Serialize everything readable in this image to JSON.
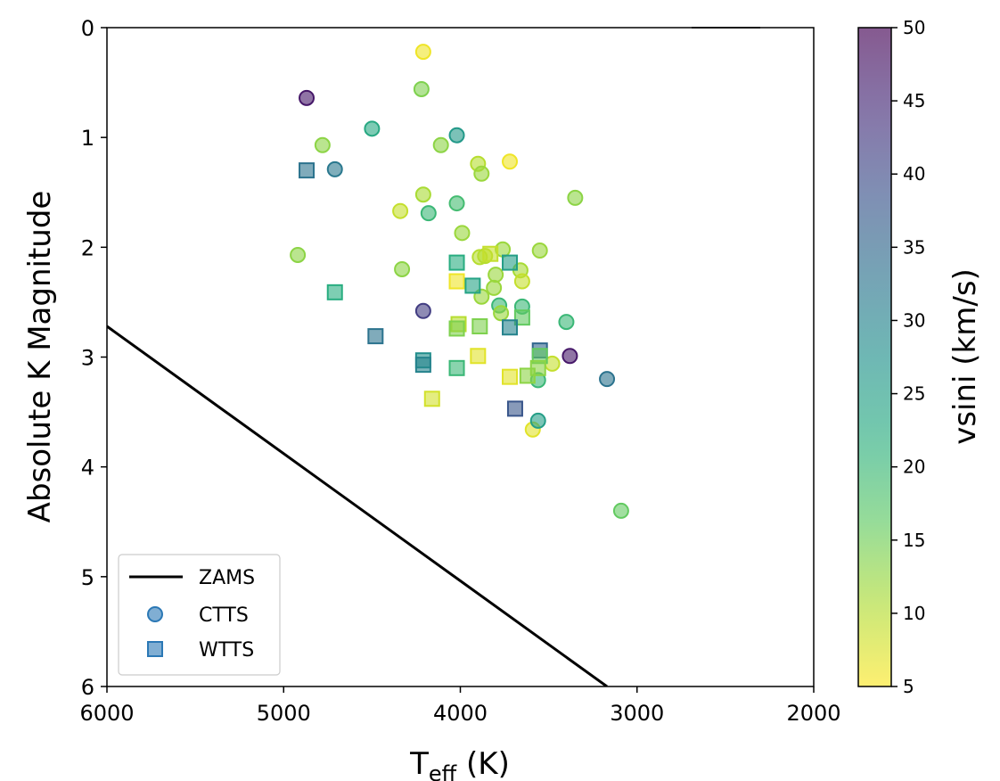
{
  "chart_data": {
    "type": "scatter",
    "xlabel_main": "T",
    "xlabel_sub": "eff",
    "xlabel_unit": " (K)",
    "ylabel": "Absolute K Magnitude",
    "xlim": [
      6000,
      2000
    ],
    "ylim": [
      6,
      0
    ],
    "x_ticks": [
      "6000",
      "5000",
      "4000",
      "3000",
      "2000"
    ],
    "x_tick_values": [
      6000,
      5000,
      4000,
      3000,
      2000
    ],
    "y_ticks": [
      "0",
      "1",
      "2",
      "3",
      "4",
      "5",
      "6"
    ],
    "y_tick_values": [
      0,
      1,
      2,
      3,
      4,
      5,
      6
    ],
    "colorbar": {
      "label": "vsini (km/s)",
      "range": [
        5,
        50
      ],
      "ticks": [
        "5",
        "10",
        "15",
        "20",
        "25",
        "30",
        "35",
        "40",
        "45",
        "50"
      ],
      "tick_values": [
        5,
        10,
        15,
        20,
        25,
        30,
        35,
        40,
        45,
        50
      ],
      "colormap": "viridis_r"
    },
    "legend": {
      "placement": "lower-left",
      "entries": [
        {
          "label": "ZAMS",
          "marker": "line"
        },
        {
          "label": "CTTS",
          "marker": "circle"
        },
        {
          "label": "WTTS",
          "marker": "square"
        }
      ]
    },
    "series": [
      {
        "name": "ZAMS",
        "kind": "line",
        "color": "#000000",
        "points": [
          [
            6000,
            2.72
          ],
          [
            3170,
            6.0
          ]
        ]
      },
      {
        "name": "CTTS",
        "kind": "circle",
        "points": [
          {
            "x": 4210,
            "y": 0.22,
            "vsini": 6
          },
          {
            "x": 4870,
            "y": 0.64,
            "vsini": 47
          },
          {
            "x": 4220,
            "y": 0.56,
            "vsini": 14
          },
          {
            "x": 4500,
            "y": 0.92,
            "vsini": 23
          },
          {
            "x": 4020,
            "y": 0.98,
            "vsini": 26
          },
          {
            "x": 4780,
            "y": 1.07,
            "vsini": 13
          },
          {
            "x": 4110,
            "y": 1.07,
            "vsini": 13
          },
          {
            "x": 4710,
            "y": 1.29,
            "vsini": 32
          },
          {
            "x": 3720,
            "y": 1.22,
            "vsini": 6
          },
          {
            "x": 3900,
            "y": 1.24,
            "vsini": 10
          },
          {
            "x": 3880,
            "y": 1.33,
            "vsini": 12
          },
          {
            "x": 4210,
            "y": 1.52,
            "vsini": 11
          },
          {
            "x": 4020,
            "y": 1.6,
            "vsini": 19
          },
          {
            "x": 3350,
            "y": 1.55,
            "vsini": 13
          },
          {
            "x": 4340,
            "y": 1.67,
            "vsini": 9
          },
          {
            "x": 4180,
            "y": 1.69,
            "vsini": 20
          },
          {
            "x": 3990,
            "y": 1.87,
            "vsini": 12
          },
          {
            "x": 4920,
            "y": 2.07,
            "vsini": 13
          },
          {
            "x": 3760,
            "y": 2.02,
            "vsini": 12
          },
          {
            "x": 3550,
            "y": 2.03,
            "vsini": 12
          },
          {
            "x": 3890,
            "y": 2.09,
            "vsini": 10
          },
          {
            "x": 3860,
            "y": 2.08,
            "vsini": 10
          },
          {
            "x": 3660,
            "y": 2.21,
            "vsini": 11
          },
          {
            "x": 4330,
            "y": 2.2,
            "vsini": 13
          },
          {
            "x": 3800,
            "y": 2.25,
            "vsini": 12
          },
          {
            "x": 3650,
            "y": 2.31,
            "vsini": 9
          },
          {
            "x": 3810,
            "y": 2.37,
            "vsini": 12
          },
          {
            "x": 3880,
            "y": 2.45,
            "vsini": 12
          },
          {
            "x": 3780,
            "y": 2.53,
            "vsini": 20
          },
          {
            "x": 3650,
            "y": 2.54,
            "vsini": 20
          },
          {
            "x": 4210,
            "y": 2.58,
            "vsini": 42
          },
          {
            "x": 3770,
            "y": 2.6,
            "vsini": 12
          },
          {
            "x": 3400,
            "y": 2.68,
            "vsini": 20
          },
          {
            "x": 3380,
            "y": 2.99,
            "vsini": 47
          },
          {
            "x": 3480,
            "y": 3.06,
            "vsini": 9
          },
          {
            "x": 3170,
            "y": 3.2,
            "vsini": 33
          },
          {
            "x": 3560,
            "y": 3.21,
            "vsini": 20
          },
          {
            "x": 3590,
            "y": 3.66,
            "vsini": 7
          },
          {
            "x": 3560,
            "y": 3.58,
            "vsini": 25
          },
          {
            "x": 3090,
            "y": 4.4,
            "vsini": 16
          }
        ]
      },
      {
        "name": "WTTS",
        "kind": "square",
        "points": [
          {
            "x": 4870,
            "y": 1.3,
            "vsini": 33
          },
          {
            "x": 4020,
            "y": 2.14,
            "vsini": 22
          },
          {
            "x": 3720,
            "y": 2.14,
            "vsini": 25
          },
          {
            "x": 3830,
            "y": 2.06,
            "vsini": 9
          },
          {
            "x": 4020,
            "y": 2.31,
            "vsini": 6
          },
          {
            "x": 3930,
            "y": 2.35,
            "vsini": 24
          },
          {
            "x": 4710,
            "y": 2.41,
            "vsini": 22
          },
          {
            "x": 3650,
            "y": 2.64,
            "vsini": 16
          },
          {
            "x": 4010,
            "y": 2.7,
            "vsini": 10
          },
          {
            "x": 4020,
            "y": 2.74,
            "vsini": 14
          },
          {
            "x": 3890,
            "y": 2.72,
            "vsini": 14
          },
          {
            "x": 3720,
            "y": 2.73,
            "vsini": 30
          },
          {
            "x": 4480,
            "y": 2.81,
            "vsini": 33
          },
          {
            "x": 3550,
            "y": 2.94,
            "vsini": 35
          },
          {
            "x": 3550,
            "y": 2.99,
            "vsini": 16
          },
          {
            "x": 3900,
            "y": 2.99,
            "vsini": 7
          },
          {
            "x": 4210,
            "y": 3.03,
            "vsini": 28
          },
          {
            "x": 4210,
            "y": 3.07,
            "vsini": 30
          },
          {
            "x": 4020,
            "y": 3.1,
            "vsini": 20
          },
          {
            "x": 3560,
            "y": 3.1,
            "vsini": 13
          },
          {
            "x": 3720,
            "y": 3.18,
            "vsini": 7
          },
          {
            "x": 3620,
            "y": 3.17,
            "vsini": 13
          },
          {
            "x": 4160,
            "y": 3.38,
            "vsini": 8
          },
          {
            "x": 3690,
            "y": 3.47,
            "vsini": 38
          }
        ]
      }
    ]
  }
}
